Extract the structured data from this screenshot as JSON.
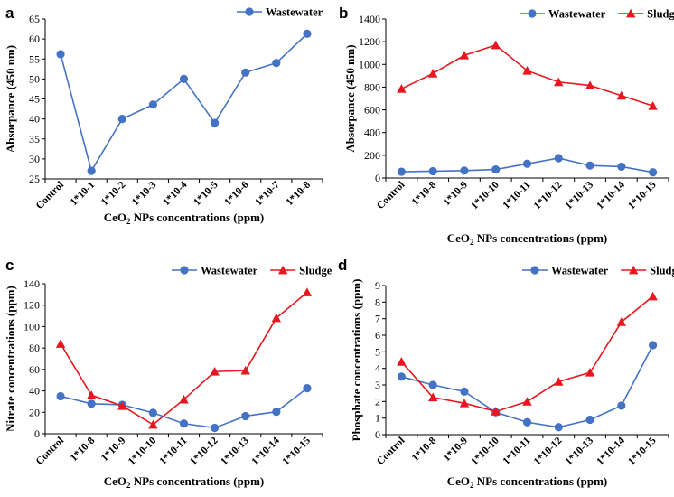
{
  "figure": {
    "colors": {
      "wastewater": "#4472C4",
      "sludge": "#E8161E",
      "axis": "#000000"
    }
  },
  "chart_data": [
    {
      "panel": "a",
      "type": "line",
      "categories": [
        "Control",
        "1*10-1",
        "1*10-2",
        "1*10-3",
        "1*10-4",
        "1*10-5",
        "1*10-6",
        "1*10-7",
        "1*10-8"
      ],
      "series": [
        {
          "name": "Wastewater",
          "marker": "circle",
          "values": [
            56.2,
            27,
            40,
            43.6,
            50,
            39,
            51.6,
            54,
            61.3
          ]
        }
      ],
      "xlabel": {
        "pre": "CeO",
        "sub": "2",
        "post": " NPs concentrations (ppm)"
      },
      "ylabel": "Absorpance (450 nm)",
      "ylim": [
        25,
        65
      ],
      "yticks": [
        25,
        30,
        35,
        40,
        45,
        50,
        55,
        60,
        65
      ],
      "legend": "top-right",
      "grid": false
    },
    {
      "panel": "b",
      "type": "line",
      "categories": [
        "Control",
        "1*10-8",
        "1*10-9",
        "1*10-10",
        "1*10-11",
        "1*10-12",
        "1*10-13",
        "1*10-14",
        "1*10-15"
      ],
      "series": [
        {
          "name": "Wastewater",
          "marker": "circle",
          "values": [
            55,
            60,
            65,
            75,
            125,
            175,
            110,
            100,
            50
          ]
        },
        {
          "name": "Sludge",
          "marker": "triangle",
          "values": [
            785,
            920,
            1080,
            1170,
            945,
            845,
            815,
            725,
            635
          ]
        }
      ],
      "xlabel": {
        "pre": "CeO",
        "sub": "2",
        "post": " NPs concentrations (ppm)"
      },
      "ylabel": "Absorpance (450 nm)",
      "ylim": [
        0,
        1400
      ],
      "yticks": [
        0,
        200,
        400,
        600,
        800,
        1000,
        1200,
        1400
      ],
      "legend": "top-right",
      "grid": false
    },
    {
      "panel": "c",
      "type": "line",
      "categories": [
        "Control",
        "1*10-8",
        "1*10-9",
        "1*10-10",
        "1*10-11",
        "1*10-12",
        "1*10-13",
        "1*10-14",
        "1*10-15"
      ],
      "series": [
        {
          "name": "Wastewater",
          "marker": "circle",
          "values": [
            35,
            28,
            27,
            19.5,
            9.5,
            5.5,
            16.5,
            20.5,
            42.5
          ]
        },
        {
          "name": "Sludge",
          "marker": "triangle",
          "values": [
            84,
            36,
            26,
            8.5,
            32,
            58,
            59,
            108,
            132
          ]
        }
      ],
      "xlabel": {
        "pre": "CeO",
        "sub": "2",
        "post": " NPs concentrations (ppm)"
      },
      "ylabel": "Nitrate concentrations (ppm)",
      "ylim": [
        0,
        140
      ],
      "yticks": [
        0,
        20,
        40,
        60,
        80,
        100,
        120,
        140
      ],
      "legend": "top-right",
      "grid": false
    },
    {
      "panel": "d",
      "type": "line",
      "categories": [
        "Control",
        "1*10-8",
        "1*10-9",
        "1*10-10",
        "1*10-11",
        "1*10-12",
        "1*10-13",
        "1*10-14",
        "1*10-15"
      ],
      "series": [
        {
          "name": "Wastewater",
          "marker": "circle",
          "values": [
            3.5,
            3.0,
            2.6,
            1.35,
            0.75,
            0.45,
            0.9,
            1.75,
            5.4
          ]
        },
        {
          "name": "Sludge",
          "marker": "triangle",
          "values": [
            4.4,
            2.25,
            1.9,
            1.4,
            2.0,
            3.2,
            3.75,
            6.8,
            8.35
          ]
        }
      ],
      "xlabel": {
        "pre": "CeO",
        "sub": "2",
        "post": " NPs concentrations (ppm)"
      },
      "ylabel": "Phosphate concentrations (ppm)",
      "ylim": [
        0,
        9
      ],
      "yticks": [
        0,
        1,
        2,
        3,
        4,
        5,
        6,
        7,
        8,
        9
      ],
      "legend": "top-right",
      "grid": false
    }
  ]
}
